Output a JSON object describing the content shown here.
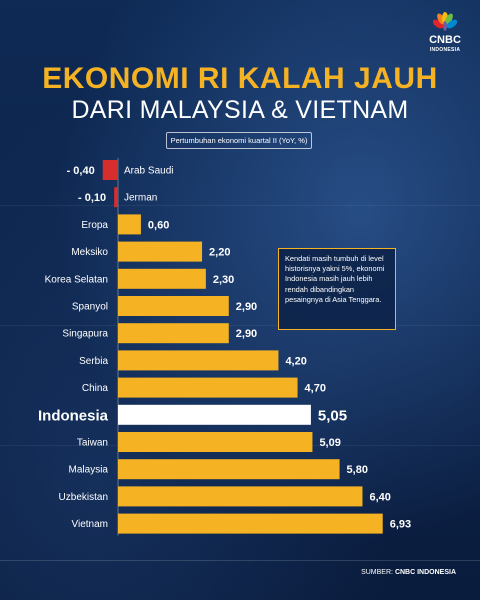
{
  "header": {
    "title_line1": "EKONOMI RI KALAH JAUH",
    "title_line2": "DARI MALAYSIA & VIETNAM",
    "subtitle": "Pertumbuhan ekonomi kuartal II (YoY, %)"
  },
  "logo": {
    "brand": "CNBC",
    "country": "INDONESIA"
  },
  "note": "Kendati masih tumbuh di level historisnya yakni 5%, ekonomi Indonesia masih jauh lebih rendah dibandingkan pesaingnya di Asia Tenggara.",
  "source": {
    "label": "SUMBER:",
    "name": "CNBC INDONESIA"
  },
  "colors": {
    "positive": "#f5b324",
    "negative": "#d62d2d",
    "highlight": "#ffffff",
    "title": "#f5b324"
  },
  "chart_data": {
    "type": "bar",
    "orientation": "horizontal",
    "title": "Pertumbuhan ekonomi kuartal II (YoY, %)",
    "categories": [
      "Arab Saudi",
      "Jerman",
      "Eropa",
      "Meksiko",
      "Korea Selatan",
      "Spanyol",
      "Singapura",
      "Serbia",
      "China",
      "Indonesia",
      "Taiwan",
      "Malaysia",
      "Uzbekistan",
      "Vietnam"
    ],
    "values": [
      -0.4,
      -0.1,
      0.6,
      2.2,
      2.3,
      2.9,
      2.9,
      4.2,
      4.7,
      5.05,
      5.09,
      5.8,
      6.4,
      6.93
    ],
    "value_labels": [
      "- 0,40",
      "- 0,10",
      "0,60",
      "2,20",
      "2,30",
      "2,90",
      "2,90",
      "4,20",
      "4,70",
      "5,05",
      "5,09",
      "5,80",
      "6,40",
      "6,93"
    ],
    "highlight": "Indonesia",
    "xlim": [
      -0.4,
      6.93
    ]
  }
}
